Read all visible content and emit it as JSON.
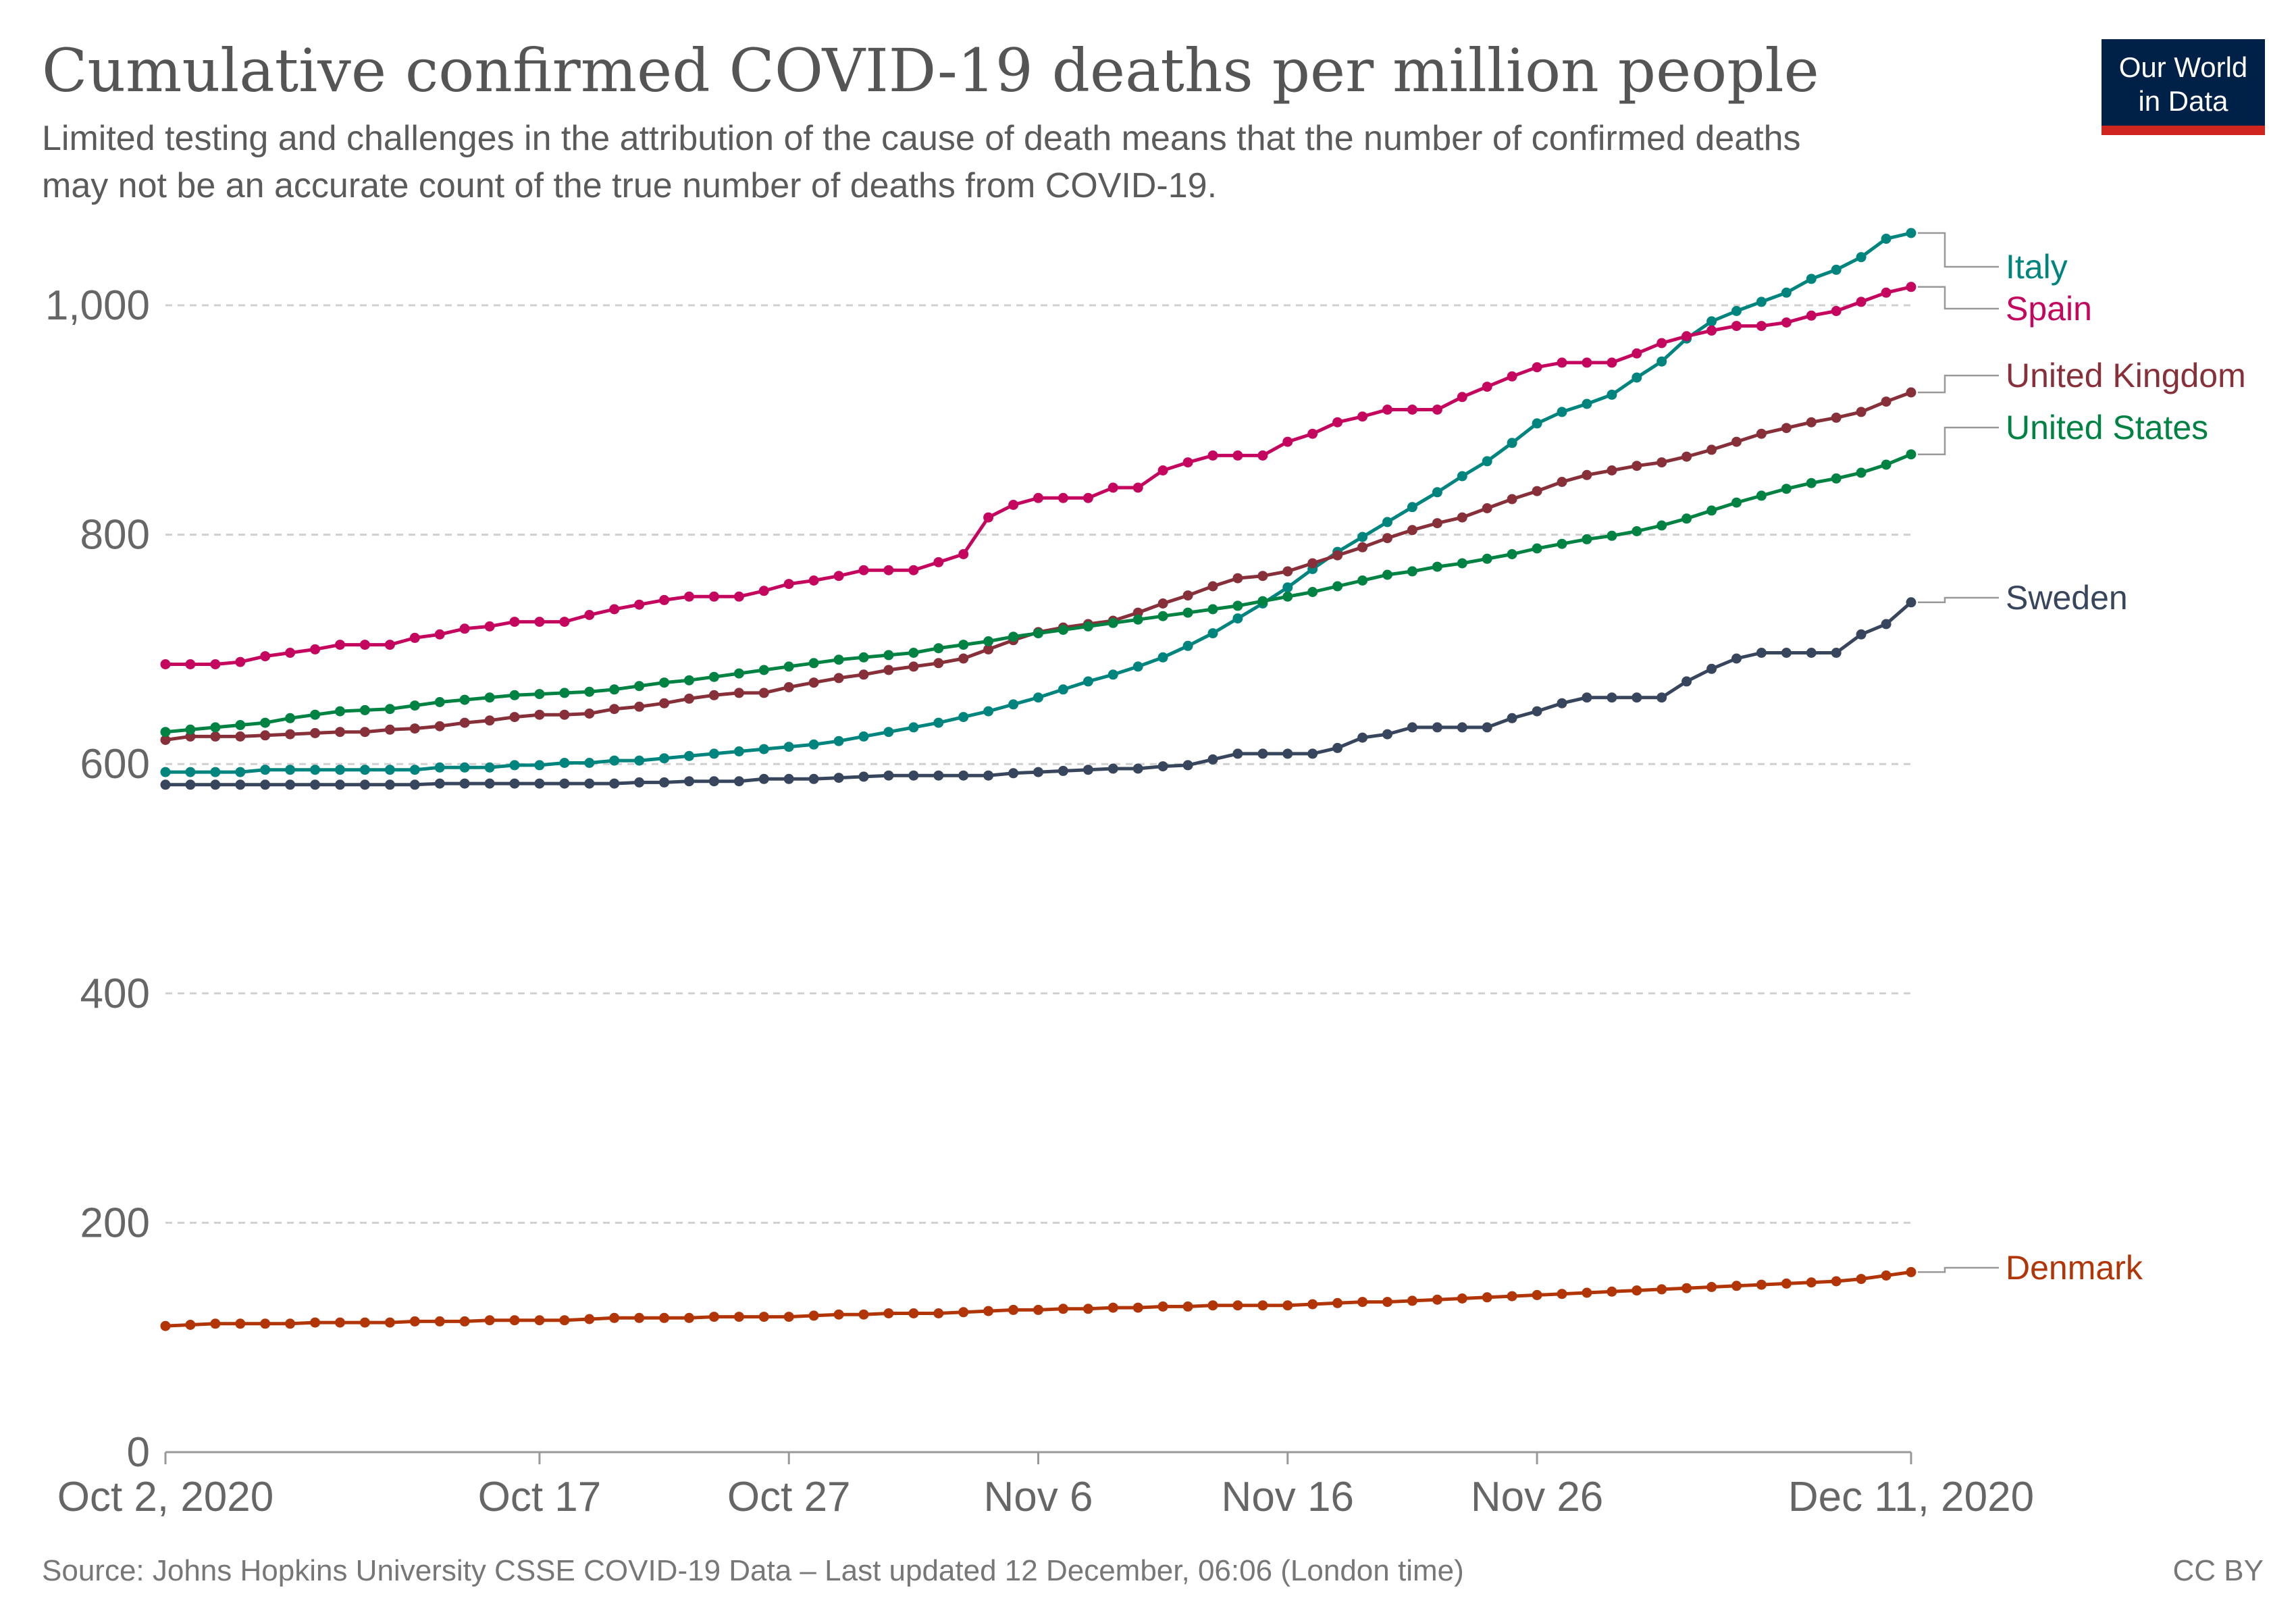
{
  "header": {
    "title": "Cumulative confirmed COVID-19 deaths per million people",
    "subtitle_line1": "Limited testing and challenges in the attribution of the cause of death means that the number of confirmed deaths",
    "subtitle_line2": "may not be an accurate count of the true number of deaths from COVID-19."
  },
  "logo": {
    "line1": "Our World",
    "line2": "in Data",
    "bg_color": "#002147",
    "accent_color": "#ce261e"
  },
  "footer": {
    "source": "Source: Johns Hopkins University CSSE COVID-19 Data – Last updated 12 December, 06:06 (London time)",
    "license": "CC BY"
  },
  "chart_data": {
    "type": "line",
    "title": "Cumulative confirmed COVID-19 deaths per million people",
    "xlabel": "",
    "ylabel": "",
    "ylim": [
      0,
      1050
    ],
    "yticks": [
      0,
      200,
      400,
      600,
      800,
      1000
    ],
    "ytick_labels": [
      "0",
      "200",
      "400",
      "600",
      "800",
      "1,000"
    ],
    "grid": true,
    "x_start": "2020-10-02",
    "x_end": "2020-12-11",
    "xticks": [
      {
        "day": 0,
        "label": "Oct 2, 2020"
      },
      {
        "day": 15,
        "label": "Oct 17"
      },
      {
        "day": 25,
        "label": "Oct 27"
      },
      {
        "day": 35,
        "label": "Nov 6"
      },
      {
        "day": 45,
        "label": "Nov 16"
      },
      {
        "day": 55,
        "label": "Nov 26"
      },
      {
        "day": 70,
        "label": "Dec 11, 2020"
      }
    ],
    "series": [
      {
        "name": "Italy",
        "color": "#00847e",
        "values": [
          593,
          593,
          593,
          593,
          595,
          595,
          595,
          595,
          595,
          595,
          595,
          597,
          597,
          597,
          599,
          599,
          601,
          601,
          603,
          603,
          605,
          607,
          609,
          611,
          613,
          615,
          617,
          620,
          624,
          628,
          632,
          636,
          641,
          646,
          652,
          658,
          665,
          672,
          678,
          685,
          693,
          703,
          714,
          727,
          740,
          754,
          770,
          785,
          798,
          811,
          824,
          837,
          851,
          864,
          880,
          897,
          907,
          914,
          922,
          937,
          951,
          971,
          986,
          995,
          1003,
          1011,
          1023,
          1031,
          1042,
          1058,
          1063
        ]
      },
      {
        "name": "Spain",
        "color": "#c4065f",
        "values": [
          687,
          687,
          687,
          689,
          694,
          697,
          700,
          704,
          704,
          704,
          710,
          713,
          718,
          720,
          724,
          724,
          724,
          730,
          735,
          739,
          743,
          746,
          746,
          746,
          751,
          757,
          760,
          764,
          769,
          769,
          769,
          776,
          783,
          815,
          826,
          832,
          832,
          832,
          841,
          841,
          856,
          863,
          869,
          869,
          869,
          881,
          888,
          898,
          903,
          909,
          909,
          909,
          920,
          929,
          938,
          946,
          950,
          950,
          950,
          958,
          967,
          973,
          978,
          982,
          982,
          985,
          991,
          995,
          1003,
          1011,
          1016
        ]
      },
      {
        "name": "United Kingdom",
        "color": "#883039",
        "values": [
          621,
          624,
          624,
          624,
          625,
          626,
          627,
          628,
          628,
          630,
          631,
          633,
          636,
          638,
          641,
          643,
          643,
          644,
          648,
          650,
          653,
          657,
          660,
          662,
          662,
          667,
          671,
          675,
          678,
          682,
          685,
          688,
          692,
          700,
          708,
          715,
          719,
          722,
          725,
          732,
          740,
          747,
          755,
          762,
          764,
          768,
          775,
          782,
          789,
          797,
          804,
          810,
          815,
          823,
          831,
          838,
          846,
          852,
          856,
          860,
          863,
          868,
          874,
          881,
          888,
          893,
          898,
          902,
          907,
          916,
          924
        ]
      },
      {
        "name": "United States",
        "color": "#008242",
        "values": [
          628,
          630,
          632,
          634,
          636,
          640,
          643,
          646,
          647,
          648,
          651,
          654,
          656,
          658,
          660,
          661,
          662,
          663,
          665,
          668,
          671,
          673,
          676,
          679,
          682,
          685,
          688,
          691,
          693,
          695,
          697,
          701,
          704,
          707,
          711,
          714,
          717,
          720,
          723,
          726,
          729,
          732,
          735,
          738,
          742,
          746,
          750,
          755,
          760,
          765,
          768,
          772,
          775,
          779,
          783,
          788,
          792,
          796,
          799,
          803,
          808,
          814,
          821,
          828,
          834,
          840,
          845,
          849,
          854,
          861,
          870
        ]
      },
      {
        "name": "Sweden",
        "color": "#38465d",
        "values": [
          582,
          582,
          582,
          582,
          582,
          582,
          582,
          582,
          582,
          582,
          582,
          583,
          583,
          583,
          583,
          583,
          583,
          583,
          583,
          584,
          584,
          585,
          585,
          585,
          587,
          587,
          587,
          588,
          589,
          590,
          590,
          590,
          590,
          590,
          592,
          593,
          594,
          595,
          596,
          596,
          598,
          599,
          604,
          609,
          609,
          609,
          609,
          614,
          623,
          626,
          632,
          632,
          632,
          632,
          640,
          646,
          653,
          658,
          658,
          658,
          658,
          672,
          683,
          692,
          697,
          697,
          697,
          697,
          713,
          722,
          741
        ]
      },
      {
        "name": "Denmark",
        "color": "#b13507",
        "values": [
          110,
          111,
          112,
          112,
          112,
          112,
          113,
          113,
          113,
          113,
          114,
          114,
          114,
          115,
          115,
          115,
          115,
          116,
          117,
          117,
          117,
          117,
          118,
          118,
          118,
          118,
          119,
          120,
          120,
          121,
          121,
          121,
          122,
          123,
          124,
          124,
          125,
          125,
          126,
          126,
          127,
          127,
          128,
          128,
          128,
          128,
          129,
          130,
          131,
          131,
          132,
          133,
          134,
          135,
          136,
          137,
          138,
          139,
          140,
          141,
          142,
          143,
          144,
          145,
          146,
          147,
          148,
          149,
          151,
          154,
          157
        ]
      }
    ]
  }
}
